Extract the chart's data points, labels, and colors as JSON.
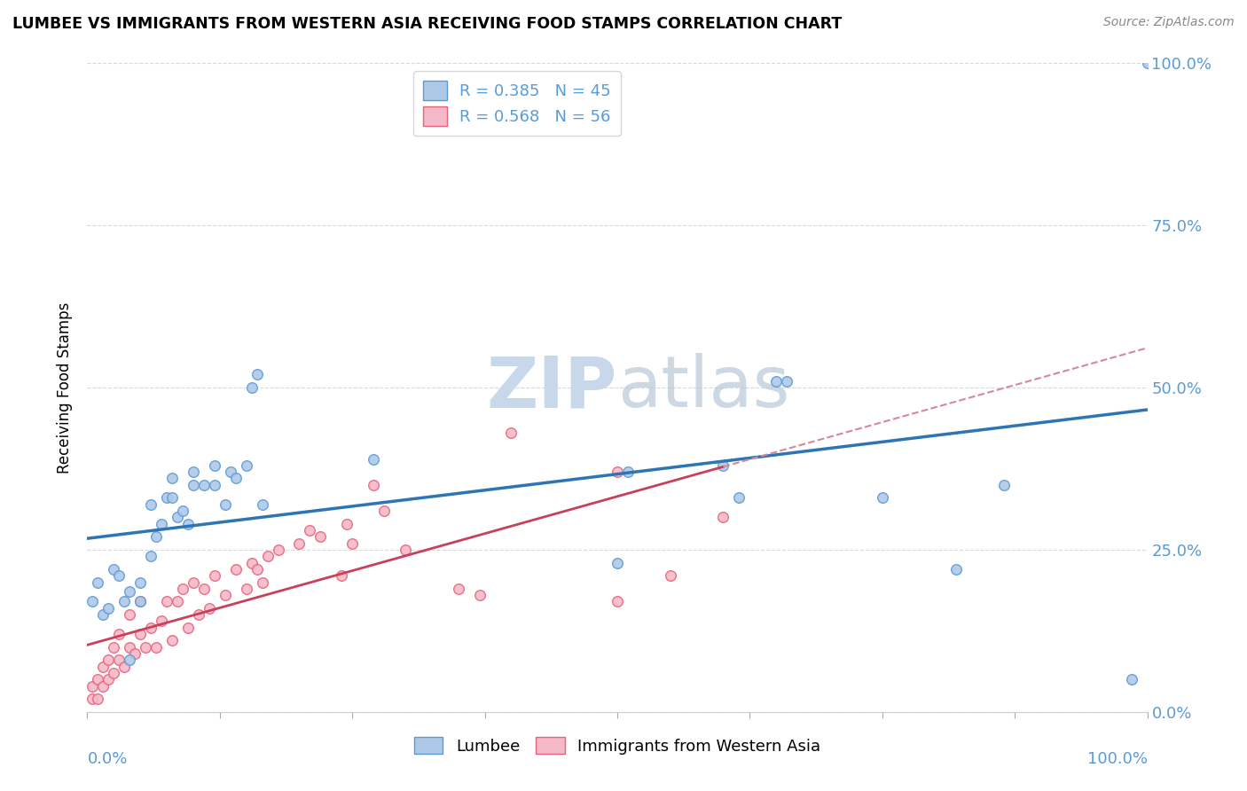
{
  "title": "LUMBEE VS IMMIGRANTS FROM WESTERN ASIA RECEIVING FOOD STAMPS CORRELATION CHART",
  "source": "Source: ZipAtlas.com",
  "ylabel": "Receiving Food Stamps",
  "ytick_labels": [
    "0.0%",
    "25.0%",
    "50.0%",
    "75.0%",
    "100.0%"
  ],
  "ytick_values": [
    0.0,
    0.25,
    0.5,
    0.75,
    1.0
  ],
  "legend_blue_R": "R = 0.385",
  "legend_blue_N": "N = 45",
  "legend_pink_R": "R = 0.568",
  "legend_pink_N": "N = 56",
  "legend_label_blue": "Lumbee",
  "legend_label_pink": "Immigrants from Western Asia",
  "blue_color": "#aec9e8",
  "blue_edge_color": "#5b9bd5",
  "pink_color": "#f4b8c8",
  "pink_edge_color": "#e8647a",
  "blue_line_color": "#2e75b6",
  "pink_line_color": "#c9405a",
  "pink_dashed_color": "#d4899a",
  "watermark_color": "#c8d8ea",
  "background_color": "#ffffff",
  "grid_color": "#d9d9d9",
  "blue_x": [
    0.005,
    0.01,
    0.015,
    0.02,
    0.025,
    0.03,
    0.035,
    0.04,
    0.04,
    0.05,
    0.05,
    0.06,
    0.06,
    0.065,
    0.07,
    0.075,
    0.08,
    0.08,
    0.085,
    0.09,
    0.095,
    0.1,
    0.1,
    0.11,
    0.12,
    0.12,
    0.13,
    0.135,
    0.14,
    0.15,
    0.155,
    0.16,
    0.165,
    0.27,
    0.5,
    0.51,
    0.6,
    0.615,
    0.65,
    0.66,
    0.75,
    0.82,
    0.865,
    0.985,
    1.0
  ],
  "blue_y": [
    0.17,
    0.2,
    0.15,
    0.16,
    0.22,
    0.21,
    0.17,
    0.185,
    0.08,
    0.2,
    0.17,
    0.24,
    0.32,
    0.27,
    0.29,
    0.33,
    0.33,
    0.36,
    0.3,
    0.31,
    0.29,
    0.35,
    0.37,
    0.35,
    0.35,
    0.38,
    0.32,
    0.37,
    0.36,
    0.38,
    0.5,
    0.52,
    0.32,
    0.39,
    0.23,
    0.37,
    0.38,
    0.33,
    0.51,
    0.51,
    0.33,
    0.22,
    0.35,
    0.05,
    1.0
  ],
  "pink_x": [
    0.005,
    0.005,
    0.01,
    0.01,
    0.015,
    0.015,
    0.02,
    0.02,
    0.025,
    0.025,
    0.03,
    0.03,
    0.035,
    0.04,
    0.04,
    0.045,
    0.05,
    0.05,
    0.055,
    0.06,
    0.065,
    0.07,
    0.075,
    0.08,
    0.085,
    0.09,
    0.095,
    0.1,
    0.105,
    0.11,
    0.115,
    0.12,
    0.13,
    0.14,
    0.15,
    0.155,
    0.16,
    0.165,
    0.17,
    0.18,
    0.2,
    0.21,
    0.22,
    0.24,
    0.245,
    0.25,
    0.27,
    0.28,
    0.3,
    0.35,
    0.37,
    0.4,
    0.5,
    0.5,
    0.55,
    0.6
  ],
  "pink_y": [
    0.02,
    0.04,
    0.02,
    0.05,
    0.04,
    0.07,
    0.05,
    0.08,
    0.06,
    0.1,
    0.08,
    0.12,
    0.07,
    0.1,
    0.15,
    0.09,
    0.12,
    0.17,
    0.1,
    0.13,
    0.1,
    0.14,
    0.17,
    0.11,
    0.17,
    0.19,
    0.13,
    0.2,
    0.15,
    0.19,
    0.16,
    0.21,
    0.18,
    0.22,
    0.19,
    0.23,
    0.22,
    0.2,
    0.24,
    0.25,
    0.26,
    0.28,
    0.27,
    0.21,
    0.29,
    0.26,
    0.35,
    0.31,
    0.25,
    0.19,
    0.18,
    0.43,
    0.17,
    0.37,
    0.21,
    0.3
  ],
  "xtick_positions": [
    0.0,
    0.125,
    0.25,
    0.375,
    0.5,
    0.625,
    0.75,
    0.875,
    1.0
  ],
  "marker_size": 70
}
